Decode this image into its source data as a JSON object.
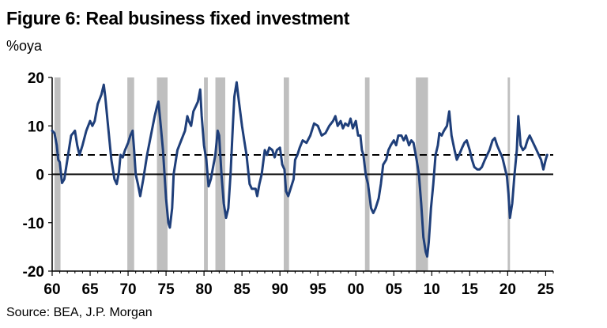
{
  "title": "Figure 6: Real business fixed investment",
  "units": "%oya",
  "source": "Source: BEA, J.P. Morgan",
  "chart_data": {
    "type": "line",
    "title": "Figure 6: Real business fixed investment",
    "ylabel": "%oya",
    "xlabel": "",
    "ylim": [
      -20,
      20
    ],
    "xlim": [
      1960,
      2026
    ],
    "y_ticks": [
      "20",
      "10",
      "0",
      "-10",
      "-20"
    ],
    "x_ticks": [
      "60",
      "65",
      "70",
      "75",
      "80",
      "85",
      "90",
      "95",
      "00",
      "05",
      "10",
      "15",
      "20",
      "25"
    ],
    "grid": false,
    "zero_line": 0,
    "reference_line": {
      "value": 4,
      "style": "dashed"
    },
    "line_color": "#1f3f7a",
    "recession_color": "#bfbfbf",
    "recessions": [
      [
        1960.3,
        1961.1
      ],
      [
        1969.9,
        1970.8
      ],
      [
        1973.8,
        1975.2
      ],
      [
        1980.0,
        1980.5
      ],
      [
        1981.5,
        1982.8
      ],
      [
        1990.5,
        1991.2
      ],
      [
        2001.2,
        2001.8
      ],
      [
        2007.9,
        2009.5
      ],
      [
        2020.0,
        2020.3
      ]
    ],
    "series": [
      {
        "values": [
          [
            1960.0,
            9
          ],
          [
            1960.3,
            8.5
          ],
          [
            1960.6,
            6
          ],
          [
            1960.8,
            3
          ],
          [
            1961.0,
            2.5
          ],
          [
            1961.3,
            -1.8
          ],
          [
            1961.6,
            -1
          ],
          [
            1962.0,
            3
          ],
          [
            1962.5,
            8
          ],
          [
            1963.0,
            9
          ],
          [
            1963.3,
            6
          ],
          [
            1963.6,
            4
          ],
          [
            1964.0,
            6
          ],
          [
            1964.5,
            9
          ],
          [
            1965.0,
            11
          ],
          [
            1965.3,
            10
          ],
          [
            1965.6,
            11
          ],
          [
            1966.0,
            14.5
          ],
          [
            1966.5,
            16.5
          ],
          [
            1966.8,
            18.5
          ],
          [
            1967.0,
            16
          ],
          [
            1967.3,
            11
          ],
          [
            1967.8,
            3
          ],
          [
            1968.2,
            -1
          ],
          [
            1968.5,
            -2
          ],
          [
            1968.8,
            0.5
          ],
          [
            1969.0,
            4
          ],
          [
            1969.3,
            3.5
          ],
          [
            1969.6,
            5
          ],
          [
            1970.0,
            6.5
          ],
          [
            1970.3,
            8
          ],
          [
            1970.6,
            9
          ],
          [
            1970.8,
            5
          ],
          [
            1971.0,
            0
          ],
          [
            1971.3,
            -2
          ],
          [
            1971.6,
            -4.5
          ],
          [
            1972.0,
            -1
          ],
          [
            1972.5,
            4
          ],
          [
            1973.0,
            8
          ],
          [
            1973.5,
            12
          ],
          [
            1973.8,
            14
          ],
          [
            1974.0,
            15
          ],
          [
            1974.3,
            10
          ],
          [
            1974.6,
            5
          ],
          [
            1975.0,
            -5
          ],
          [
            1975.3,
            -10
          ],
          [
            1975.5,
            -11
          ],
          [
            1975.8,
            -7
          ],
          [
            1976.0,
            0
          ],
          [
            1976.5,
            5
          ],
          [
            1977.0,
            7
          ],
          [
            1977.5,
            9
          ],
          [
            1977.8,
            12
          ],
          [
            1978.0,
            11
          ],
          [
            1978.3,
            10
          ],
          [
            1978.6,
            13
          ],
          [
            1978.9,
            14
          ],
          [
            1979.2,
            15
          ],
          [
            1979.5,
            17.5
          ],
          [
            1979.7,
            12
          ],
          [
            1980.0,
            6
          ],
          [
            1980.3,
            3
          ],
          [
            1980.6,
            -2.5
          ],
          [
            1980.9,
            -1
          ],
          [
            1981.2,
            1.5
          ],
          [
            1981.5,
            4
          ],
          [
            1981.8,
            9
          ],
          [
            1982.0,
            8
          ],
          [
            1982.3,
            0
          ],
          [
            1982.6,
            -6
          ],
          [
            1982.9,
            -9
          ],
          [
            1983.2,
            -7
          ],
          [
            1983.5,
            0
          ],
          [
            1983.8,
            10
          ],
          [
            1984.0,
            16
          ],
          [
            1984.3,
            19
          ],
          [
            1984.6,
            15
          ],
          [
            1985.0,
            10
          ],
          [
            1985.3,
            7
          ],
          [
            1985.6,
            4
          ],
          [
            1986.0,
            -2
          ],
          [
            1986.3,
            -3
          ],
          [
            1986.8,
            -3
          ],
          [
            1987.0,
            -4.5
          ],
          [
            1987.3,
            -2
          ],
          [
            1987.6,
            0
          ],
          [
            1988.0,
            5
          ],
          [
            1988.3,
            4
          ],
          [
            1988.6,
            5.5
          ],
          [
            1989.0,
            5
          ],
          [
            1989.3,
            3.5
          ],
          [
            1989.6,
            5
          ],
          [
            1990.0,
            5.5
          ],
          [
            1990.3,
            2
          ],
          [
            1990.6,
            1
          ],
          [
            1990.8,
            -3.5
          ],
          [
            1991.1,
            -4.5
          ],
          [
            1991.4,
            -3
          ],
          [
            1991.8,
            -1
          ],
          [
            1992.0,
            3
          ],
          [
            1992.3,
            4
          ],
          [
            1992.6,
            5.5
          ],
          [
            1993.0,
            7
          ],
          [
            1993.5,
            6.5
          ],
          [
            1994.0,
            8
          ],
          [
            1994.5,
            10.5
          ],
          [
            1995.0,
            10
          ],
          [
            1995.5,
            8
          ],
          [
            1996.0,
            8.5
          ],
          [
            1996.5,
            10
          ],
          [
            1997.0,
            11
          ],
          [
            1997.3,
            12
          ],
          [
            1997.6,
            10
          ],
          [
            1998.0,
            11
          ],
          [
            1998.3,
            9.5
          ],
          [
            1998.6,
            10.5
          ],
          [
            1999.0,
            10
          ],
          [
            1999.3,
            11.5
          ],
          [
            1999.6,
            9.5
          ],
          [
            2000.0,
            11
          ],
          [
            2000.3,
            8
          ],
          [
            2000.6,
            8
          ],
          [
            2000.8,
            5
          ],
          [
            2001.0,
            4
          ],
          [
            2001.3,
            0
          ],
          [
            2001.6,
            -2
          ],
          [
            2002.0,
            -7
          ],
          [
            2002.3,
            -8
          ],
          [
            2002.6,
            -7
          ],
          [
            2003.0,
            -5
          ],
          [
            2003.3,
            -2
          ],
          [
            2003.6,
            2
          ],
          [
            2004.0,
            3
          ],
          [
            2004.3,
            5
          ],
          [
            2004.6,
            6
          ],
          [
            2005.0,
            7
          ],
          [
            2005.3,
            6
          ],
          [
            2005.6,
            8
          ],
          [
            2006.0,
            8
          ],
          [
            2006.3,
            7
          ],
          [
            2006.6,
            8
          ],
          [
            2007.0,
            6
          ],
          [
            2007.3,
            7
          ],
          [
            2007.6,
            6.5
          ],
          [
            2008.0,
            3
          ],
          [
            2008.3,
            0
          ],
          [
            2008.6,
            -6
          ],
          [
            2008.9,
            -13
          ],
          [
            2009.2,
            -16
          ],
          [
            2009.4,
            -17
          ],
          [
            2009.6,
            -14
          ],
          [
            2009.9,
            -7
          ],
          [
            2010.2,
            -2
          ],
          [
            2010.5,
            4
          ],
          [
            2010.8,
            6
          ],
          [
            2011.0,
            8.5
          ],
          [
            2011.3,
            8
          ],
          [
            2011.6,
            9
          ],
          [
            2012.0,
            10
          ],
          [
            2012.3,
            13
          ],
          [
            2012.6,
            8
          ],
          [
            2013.0,
            5
          ],
          [
            2013.3,
            3
          ],
          [
            2013.6,
            4
          ],
          [
            2014.0,
            5.5
          ],
          [
            2014.3,
            6.5
          ],
          [
            2014.6,
            7
          ],
          [
            2015.0,
            5
          ],
          [
            2015.3,
            3
          ],
          [
            2015.6,
            1.5
          ],
          [
            2016.0,
            1
          ],
          [
            2016.3,
            1
          ],
          [
            2016.6,
            1.5
          ],
          [
            2017.0,
            3
          ],
          [
            2017.3,
            4
          ],
          [
            2017.6,
            5
          ],
          [
            2018.0,
            7
          ],
          [
            2018.3,
            7.5
          ],
          [
            2018.6,
            6
          ],
          [
            2019.0,
            4.5
          ],
          [
            2019.3,
            3.5
          ],
          [
            2019.6,
            1.5
          ],
          [
            2019.9,
            -0.5
          ],
          [
            2020.1,
            -4
          ],
          [
            2020.3,
            -9
          ],
          [
            2020.6,
            -6
          ],
          [
            2020.9,
            0
          ],
          [
            2021.2,
            5
          ],
          [
            2021.4,
            12
          ],
          [
            2021.7,
            6
          ],
          [
            2022.0,
            5
          ],
          [
            2022.3,
            5.5
          ],
          [
            2022.6,
            7
          ],
          [
            2022.9,
            8
          ],
          [
            2023.2,
            7
          ],
          [
            2023.5,
            6
          ],
          [
            2023.8,
            5
          ],
          [
            2024.1,
            4
          ],
          [
            2024.4,
            3
          ],
          [
            2024.7,
            1
          ],
          [
            2025.0,
            3
          ],
          [
            2025.2,
            4
          ]
        ]
      }
    ]
  }
}
